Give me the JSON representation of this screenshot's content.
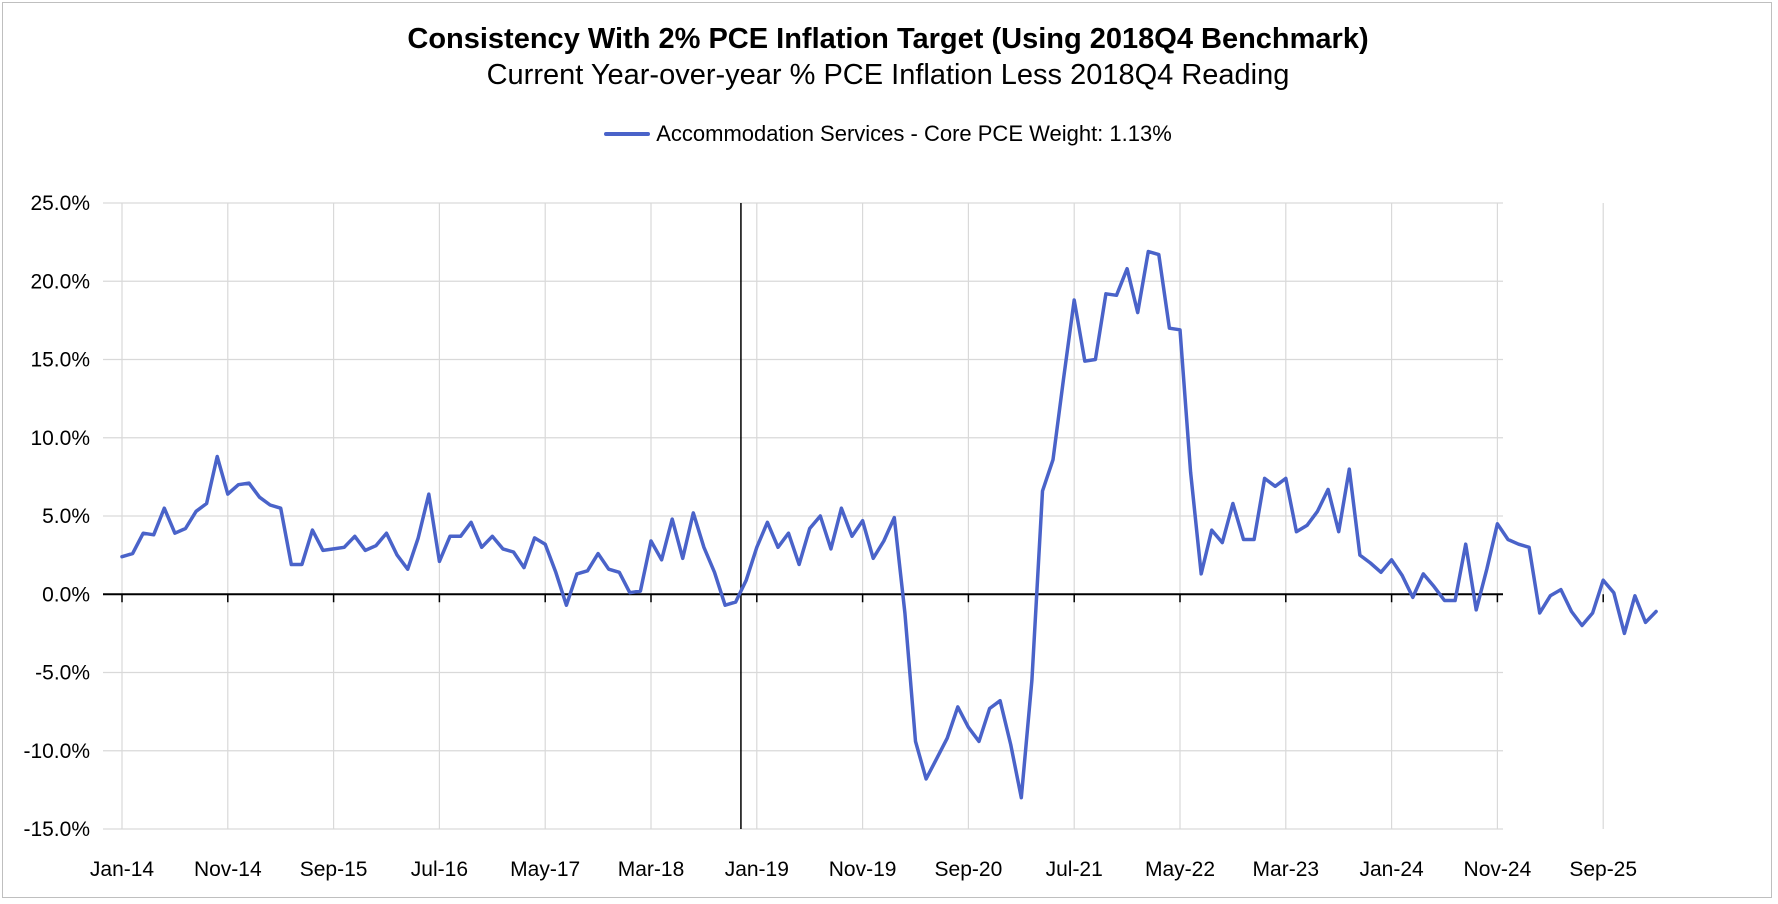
{
  "chart_data": {
    "type": "line",
    "title": "Consistency With 2% PCE Inflation Target (Using 2018Q4 Benchmark)",
    "subtitle": "Current Year-over-year % PCE Inflation Less 2018Q4 Reading",
    "xlabel": "",
    "ylabel": "",
    "ylim": [
      -15,
      25
    ],
    "y_ticks": [
      25,
      20,
      15,
      10,
      5,
      0,
      -5,
      -10,
      -15
    ],
    "y_tick_labels": [
      "25.0%",
      "20.0%",
      "15.0%",
      "10.0%",
      "5.0%",
      "0.0%",
      "-5.0%",
      "-10.0%",
      "-15.0%"
    ],
    "x_tick_labels": [
      "Jan-14",
      "Nov-14",
      "Sep-15",
      "Jul-16",
      "May-17",
      "Mar-18",
      "Jan-19",
      "Nov-19",
      "Sep-20",
      "Jul-21",
      "May-22",
      "Mar-23",
      "Jan-24",
      "Nov-24",
      "Sep-25"
    ],
    "x_tick_month_index": [
      0,
      10,
      20,
      30,
      40,
      50,
      60,
      70,
      80,
      90,
      100,
      110,
      120,
      130,
      140
    ],
    "reference_line": {
      "label": "",
      "month_index": 58.5
    },
    "x_start": "Jan-14",
    "x_frequency": "monthly",
    "legend_position": "top-center",
    "grid": true,
    "series": [
      {
        "name": "Accommodation Services - Core PCE Weight: 1.13%",
        "color": "#4a63c9",
        "values": [
          2.4,
          2.6,
          3.9,
          3.8,
          5.5,
          3.9,
          4.2,
          5.3,
          5.8,
          8.8,
          6.4,
          7.0,
          7.1,
          6.2,
          5.7,
          5.5,
          1.9,
          1.9,
          4.1,
          2.8,
          2.9,
          3.0,
          3.7,
          2.8,
          3.1,
          3.9,
          2.5,
          1.6,
          3.6,
          6.4,
          2.1,
          3.7,
          3.7,
          4.6,
          3.0,
          3.7,
          2.9,
          2.7,
          1.7,
          3.6,
          3.2,
          1.4,
          -0.7,
          1.3,
          1.5,
          2.6,
          1.6,
          1.4,
          0.1,
          0.2,
          3.4,
          2.2,
          4.8,
          2.3,
          5.2,
          3.0,
          1.4,
          -0.7,
          -0.5,
          0.9,
          3.0,
          4.6,
          3.0,
          3.9,
          1.9,
          4.2,
          5.0,
          2.9,
          5.5,
          3.7,
          4.7,
          2.3,
          3.4,
          4.9,
          -1.2,
          -9.4,
          -11.8,
          -10.5,
          -9.2,
          -7.2,
          -8.5,
          -9.4,
          -7.3,
          -6.8,
          -9.6,
          -13.0,
          -5.5,
          6.6,
          8.6,
          13.8,
          18.8,
          14.9,
          15.0,
          19.2,
          19.1,
          20.8,
          18.0,
          21.9,
          21.7,
          17.0,
          16.9,
          7.8,
          1.3,
          4.1,
          3.3,
          5.8,
          3.5,
          3.5,
          7.4,
          6.9,
          7.4,
          4.0,
          4.4,
          5.3,
          6.7,
          4.0,
          8.0,
          2.5,
          2.0,
          1.4,
          2.2,
          1.2,
          -0.2,
          1.3,
          0.5,
          -0.4,
          -0.4,
          3.2,
          -1.0,
          1.6,
          4.5,
          3.5,
          3.2,
          3.0,
          -1.2,
          -0.1,
          0.3,
          -1.1,
          -2.0,
          -1.2,
          0.9,
          0.1,
          -2.5,
          -0.1,
          -1.8,
          -1.1
        ]
      }
    ]
  }
}
